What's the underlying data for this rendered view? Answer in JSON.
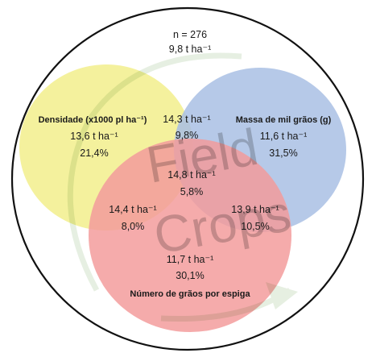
{
  "total": {
    "n": "n = 276",
    "yield": "9,8 t ha⁻¹"
  },
  "density": {
    "title": "Densidade (x1000 pl ha⁻¹)",
    "yield": "13,6 t ha⁻¹",
    "pct": "21,4%",
    "color": "#f2ee8c"
  },
  "mass": {
    "title": "Massa de mil grãos (g)",
    "yield": "11,6 t ha⁻¹",
    "pct": "31,5%",
    "color": "#a9bfe4"
  },
  "grains": {
    "title": "Número de grãos por espiga",
    "yield": "11,7 t ha⁻¹",
    "pct": "30,1%",
    "color": "#f39c9c"
  },
  "density_mass": {
    "yield": "14,3 t ha⁻¹",
    "pct": "9,8%"
  },
  "density_grains": {
    "yield": "14,4 t ha⁻¹",
    "pct": "8,0%"
  },
  "mass_grains": {
    "yield": "13,9 t ha⁻¹",
    "pct": "10,5%"
  },
  "all_three": {
    "yield": "14,8 t ha⁻¹",
    "pct": "5,8%"
  },
  "watermark": "Field Crops"
}
